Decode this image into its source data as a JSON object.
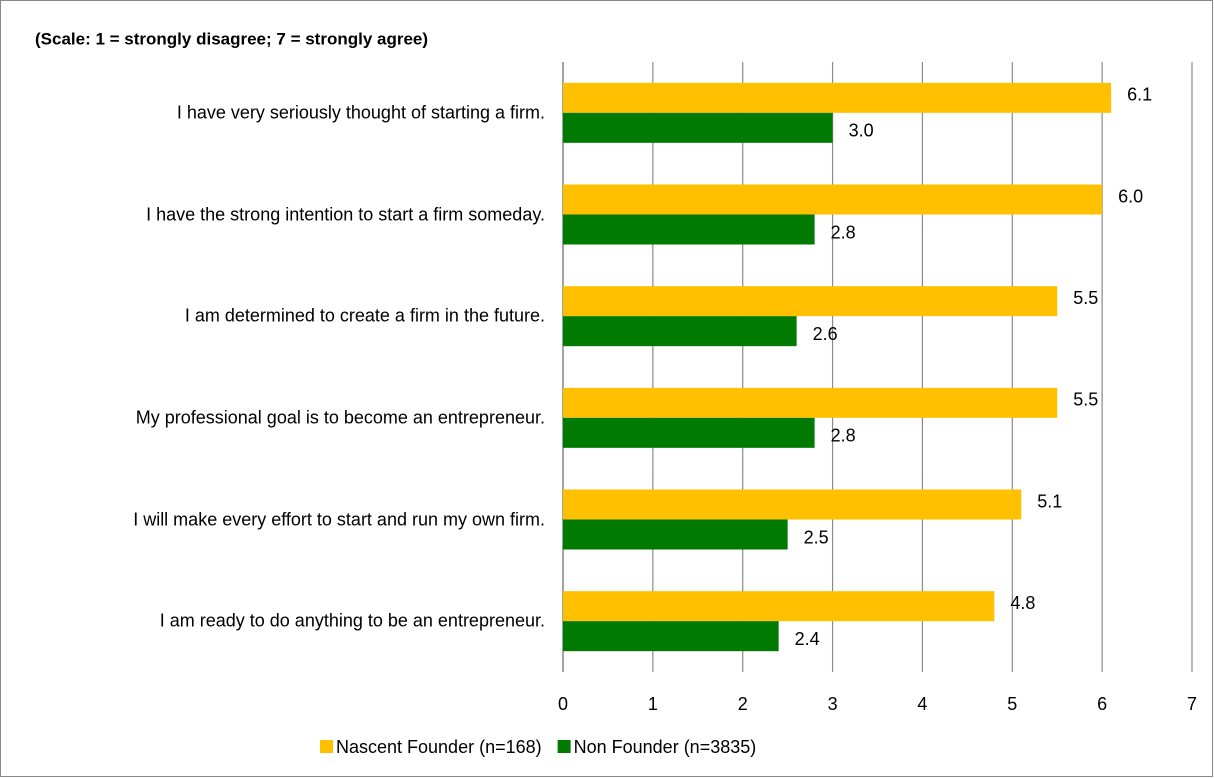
{
  "chart_data": {
    "type": "hbar",
    "title": "(Scale: 1 = strongly disagree; 7 = strongly agree)",
    "categories": [
      "I have very seriously thought of starting a firm.",
      "I have the strong intention to start a firm someday.",
      "I am determined to create a firm in the future.",
      "My professional goal is to become an entrepreneur.",
      "I will make every effort to start and run my own firm.",
      "I am ready to do anything to be an entrepreneur."
    ],
    "series": [
      {
        "name": "Nascent Founder (n=168)",
        "color": "#ffc000",
        "values": [
          6.1,
          6.0,
          5.5,
          5.5,
          5.1,
          4.8
        ],
        "value_labels": [
          "6.1",
          "6.0",
          "5.5",
          "5.5",
          "5.1",
          "4.8"
        ]
      },
      {
        "name": "Non Founder (n=3835)",
        "color": "#007a00",
        "values": [
          3.0,
          2.8,
          2.6,
          2.8,
          2.5,
          2.4
        ],
        "value_labels": [
          "3.0",
          "2.8",
          "2.6",
          "2.8",
          "2.5",
          "2.4"
        ]
      }
    ],
    "xlim": [
      0,
      7
    ],
    "xticks": [
      0,
      1,
      2,
      3,
      4,
      5,
      6,
      7
    ],
    "grid": true,
    "legend": "bottom"
  }
}
